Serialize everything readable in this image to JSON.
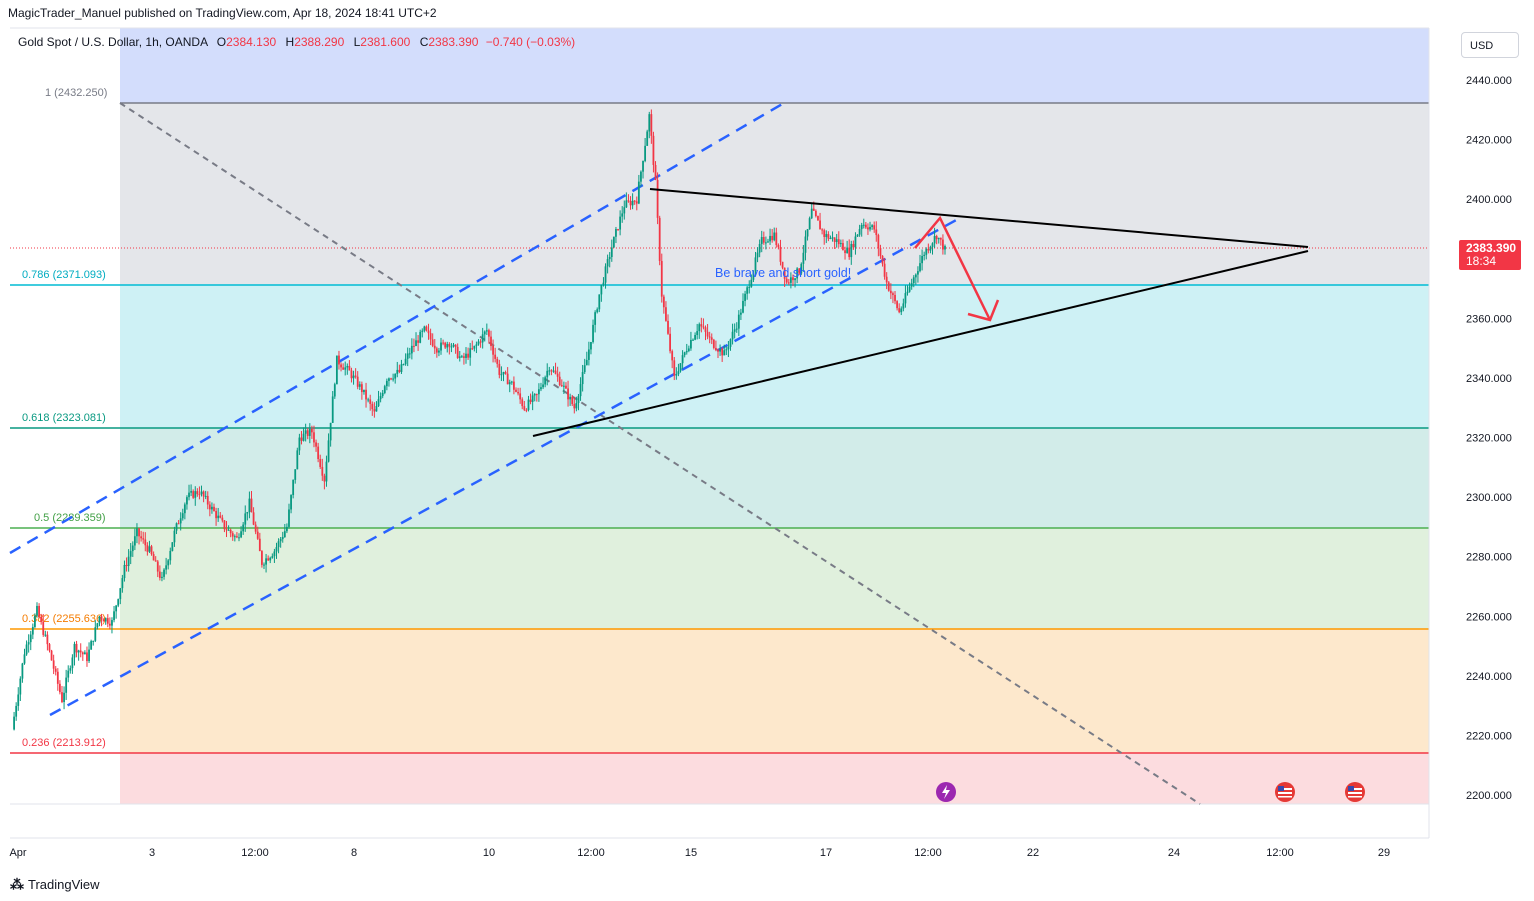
{
  "header": {
    "published": "MagicTrader_Manuel published on TradingView.com, Apr 18, 2024 18:41 UTC+2"
  },
  "symbol": {
    "name": "Gold Spot / U.S. Dollar, 1h, OANDA",
    "open_label": "O",
    "open": "2384.130",
    "high_label": "H",
    "high": "2388.290",
    "low_label": "L",
    "low": "2381.600",
    "close_label": "C",
    "close": "2383.390",
    "change": "−0.740 (−0.03%)"
  },
  "currency_button": "USD",
  "last_price": {
    "value": "2383.390",
    "countdown": "18:34"
  },
  "annotation": "Be brave and short gold!",
  "footer": {
    "brand": "TradingView"
  },
  "icons": {
    "event_flash": "lightning-icon",
    "event_us": "us-flag-icon"
  },
  "colors": {
    "candle_up": "#089981",
    "candle_down": "#f23645",
    "channel": "#2962ff",
    "triangle": "#000000",
    "arrow": "#f23645",
    "fib_1": "#787b86",
    "fib_0786": "#00bcd4",
    "fib_0618": "#089981",
    "fib_05": "#4caf50",
    "fib_0382": "#ff9800",
    "fib_0236": "#f23645"
  },
  "chart_data": {
    "type": "candlestick",
    "title": "Gold Spot / U.S. Dollar, 1h, OANDA",
    "y_axis": {
      "ticks": [
        "2440.000",
        "2420.000",
        "2400.000",
        "2380.000",
        "2360.000",
        "2340.000",
        "2320.000",
        "2300.000",
        "2280.000",
        "2260.000",
        "2240.000",
        "2220.000",
        "2200.000"
      ],
      "range": [
        2198,
        2448
      ]
    },
    "x_axis": {
      "ticks": [
        "Apr",
        "3",
        "12:00",
        "8",
        "10",
        "12:00",
        "15",
        "17",
        "12:00",
        "22",
        "24",
        "12:00",
        "29"
      ]
    },
    "fibonacci": [
      {
        "level": "1",
        "price": "2432.250"
      },
      {
        "level": "0.786",
        "price": "2371.093"
      },
      {
        "level": "0.618",
        "price": "2323.081"
      },
      {
        "level": "0.5",
        "price": "2289.359"
      },
      {
        "level": "0.382",
        "price": "2255.636"
      },
      {
        "level": "0.236",
        "price": "2213.912"
      }
    ],
    "price_path": [
      [
        0,
        2222
      ],
      [
        6,
        2248
      ],
      [
        12,
        2262
      ],
      [
        18,
        2248
      ],
      [
        24,
        2232
      ],
      [
        30,
        2250
      ],
      [
        36,
        2246
      ],
      [
        42,
        2260
      ],
      [
        48,
        2258
      ],
      [
        54,
        2276
      ],
      [
        60,
        2288
      ],
      [
        66,
        2282
      ],
      [
        72,
        2272
      ],
      [
        78,
        2288
      ],
      [
        84,
        2300
      ],
      [
        90,
        2302
      ],
      [
        96,
        2296
      ],
      [
        102,
        2290
      ],
      [
        108,
        2286
      ],
      [
        114,
        2298
      ],
      [
        120,
        2278
      ],
      [
        126,
        2282
      ],
      [
        132,
        2290
      ],
      [
        138,
        2320
      ],
      [
        144,
        2322
      ],
      [
        150,
        2306
      ],
      [
        156,
        2346
      ],
      [
        162,
        2342
      ],
      [
        168,
        2336
      ],
      [
        174,
        2328
      ],
      [
        180,
        2340
      ],
      [
        186,
        2342
      ],
      [
        192,
        2350
      ],
      [
        198,
        2356
      ],
      [
        204,
        2350
      ],
      [
        210,
        2352
      ],
      [
        216,
        2346
      ],
      [
        222,
        2350
      ],
      [
        228,
        2356
      ],
      [
        234,
        2342
      ],
      [
        240,
        2338
      ],
      [
        246,
        2330
      ],
      [
        252,
        2334
      ],
      [
        258,
        2344
      ],
      [
        264,
        2338
      ],
      [
        270,
        2330
      ],
      [
        276,
        2346
      ],
      [
        282,
        2368
      ],
      [
        288,
        2384
      ],
      [
        294,
        2398
      ],
      [
        300,
        2400
      ],
      [
        306,
        2428
      ],
      [
        309,
        2405
      ],
      [
        312,
        2368
      ],
      [
        318,
        2340
      ],
      [
        324,
        2350
      ],
      [
        330,
        2358
      ],
      [
        336,
        2352
      ],
      [
        342,
        2348
      ],
      [
        348,
        2358
      ],
      [
        354,
        2372
      ],
      [
        360,
        2386
      ],
      [
        366,
        2388
      ],
      [
        372,
        2372
      ],
      [
        378,
        2376
      ],
      [
        384,
        2396
      ],
      [
        390,
        2388
      ],
      [
        396,
        2386
      ],
      [
        402,
        2382
      ],
      [
        408,
        2392
      ],
      [
        414,
        2390
      ],
      [
        420,
        2372
      ],
      [
        426,
        2362
      ],
      [
        432,
        2372
      ],
      [
        438,
        2382
      ],
      [
        444,
        2388
      ],
      [
        448,
        2383
      ]
    ]
  }
}
